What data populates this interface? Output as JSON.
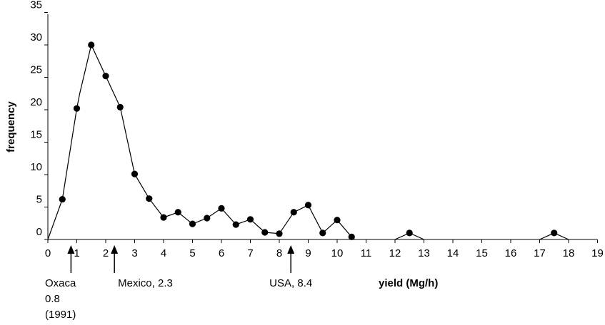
{
  "chart_data": {
    "type": "line",
    "xlabel": "yield (Mg/h)",
    "ylabel": "frequency",
    "xlim": [
      0,
      19
    ],
    "ylim": [
      0,
      35
    ],
    "x_ticks": [
      "0",
      "1",
      "2",
      "3",
      "4",
      "5",
      "6",
      "7",
      "8",
      "9",
      "10",
      "11",
      "12",
      "13",
      "14",
      "15",
      "16",
      "17",
      "18",
      "19"
    ],
    "y_ticks": [
      "0",
      "5",
      "10",
      "15",
      "20",
      "25",
      "30",
      "35"
    ],
    "grid": false,
    "legend": "none",
    "series": [
      {
        "x": [
          0.5,
          1.0,
          1.5,
          2.0,
          2.5,
          3.0,
          3.5,
          4.0,
          4.5,
          5.0,
          5.5,
          6.0,
          6.5,
          7.0,
          7.5,
          8.0,
          8.5,
          9.0,
          9.5,
          10.0,
          10.5,
          12.5,
          17.5
        ],
        "y": [
          6.2,
          20.2,
          30.0,
          25.2,
          20.4,
          10.1,
          6.3,
          3.4,
          4.2,
          2.4,
          3.3,
          4.8,
          2.3,
          3.1,
          1.1,
          0.9,
          4.2,
          5.3,
          1.0,
          3.0,
          0.4,
          1.0,
          1.0
        ],
        "line_path": [
          [
            0,
            0
          ],
          [
            0.5,
            6.2
          ],
          [
            1.0,
            20.2
          ],
          [
            1.1,
            22.5
          ],
          [
            1.5,
            30.0
          ],
          [
            2.0,
            25.2
          ],
          [
            2.5,
            20.4
          ],
          [
            3.0,
            10.1
          ],
          [
            3.5,
            6.3
          ],
          [
            4.0,
            3.4
          ],
          [
            4.5,
            4.2
          ],
          [
            5.0,
            2.4
          ],
          [
            5.5,
            3.3
          ],
          [
            6.0,
            4.8
          ],
          [
            6.5,
            2.3
          ],
          [
            7.0,
            3.1
          ],
          [
            7.5,
            1.1
          ],
          [
            8.0,
            0.9
          ],
          [
            8.5,
            4.2
          ],
          [
            9.0,
            5.3
          ],
          [
            9.5,
            1.0
          ],
          [
            10.0,
            3.0
          ],
          [
            10.5,
            0.4
          ],
          [
            10.6,
            0
          ]
        ],
        "extra_segments": [
          [
            [
              12.0,
              0
            ],
            [
              12.5,
              1.0
            ],
            [
              13.0,
              0
            ]
          ],
          [
            [
              17.0,
              0
            ],
            [
              17.5,
              1.0
            ],
            [
              18.0,
              0
            ]
          ]
        ]
      }
    ],
    "annotations": [
      {
        "x": 0.8,
        "lines": [
          "Oxaca",
          "0.8",
          "(1991)"
        ],
        "align": "start"
      },
      {
        "x": 2.3,
        "lines": [
          "Mexico, 2.3"
        ],
        "align": "start"
      },
      {
        "x": 8.4,
        "lines": [
          "USA, 8.4"
        ],
        "align": "middle"
      }
    ]
  }
}
